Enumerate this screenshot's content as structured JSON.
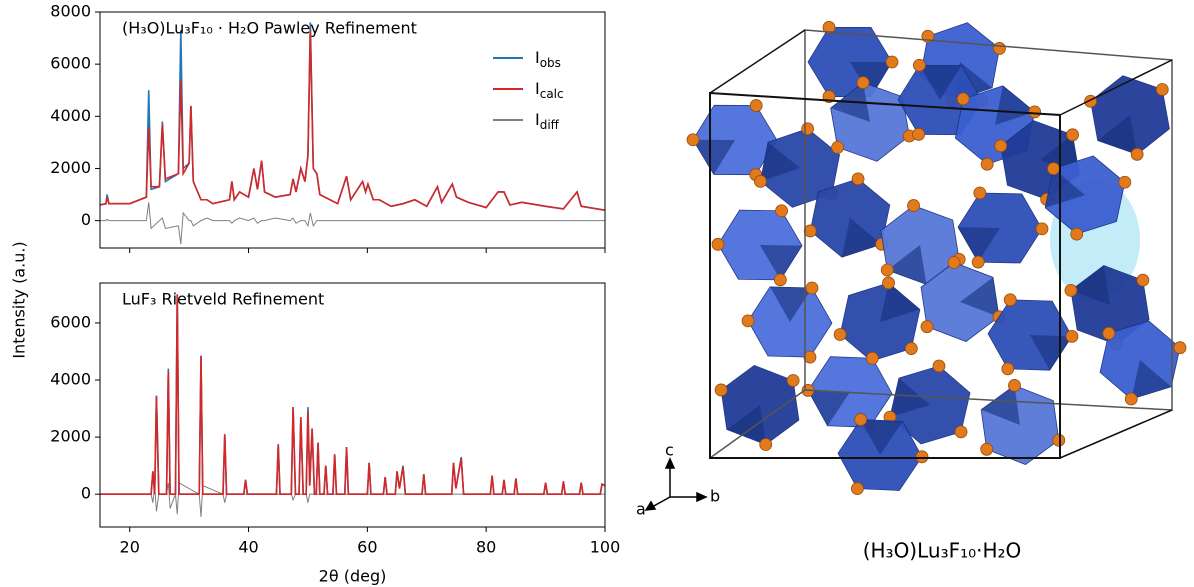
{
  "chart_data": [
    {
      "type": "line",
      "title": "(H₃O)Lu₃F₁₀ · H₂O Pawley Refinement",
      "ylabel": "Intensity (a.u.)",
      "x": [
        15,
        16,
        16.2,
        16.5,
        20,
        22.8,
        23.2,
        23.6,
        25,
        25.5,
        26,
        28.2,
        28.6,
        29,
        30,
        30.3,
        30.7,
        32,
        33,
        34,
        36.8,
        37.2,
        37.6,
        38.5,
        40,
        40.9,
        41.5,
        42.2,
        42.7,
        44.5,
        47,
        47.5,
        48,
        48.8,
        49.5,
        50,
        50.4,
        50.9,
        51.5,
        52,
        55,
        56.5,
        57.2,
        59.2,
        59.7,
        60.1,
        61,
        62,
        64,
        66,
        68,
        70,
        71.8,
        72.5,
        74.3,
        75,
        77,
        80,
        82,
        83,
        84,
        86,
        90,
        93,
        95.3,
        96,
        100
      ],
      "xlim": [
        15,
        100
      ],
      "xticks": [
        20,
        40,
        60,
        80,
        100
      ],
      "show_xtick_labels": false,
      "ylim": [
        -1050,
        8000
      ],
      "yticks": [
        0,
        2000,
        4000,
        6000,
        8000
      ],
      "legend": "upper right",
      "series": [
        {
          "name": "Iobs",
          "color": "#1f77b4",
          "values": [
            600,
            650,
            1000,
            650,
            650,
            900,
            5000,
            1200,
            1300,
            3800,
            1500,
            1800,
            7300,
            2000,
            2200,
            4400,
            1500,
            800,
            800,
            650,
            800,
            1500,
            800,
            1100,
            900,
            2000,
            1200,
            2300,
            1100,
            900,
            1000,
            1600,
            1100,
            2000,
            1500,
            2500,
            7600,
            2000,
            1800,
            1000,
            650,
            1700,
            800,
            1500,
            1100,
            1400,
            800,
            800,
            550,
            650,
            800,
            550,
            1300,
            700,
            1400,
            900,
            700,
            500,
            1100,
            1100,
            600,
            700,
            550,
            450,
            1100,
            550,
            400
          ]
        },
        {
          "name": "Icalc",
          "color": "#d62728",
          "values": [
            600,
            650,
            900,
            650,
            650,
            900,
            3600,
            1300,
            1300,
            3700,
            1600,
            1800,
            5400,
            1800,
            2200,
            4400,
            1500,
            800,
            800,
            650,
            800,
            1500,
            800,
            1100,
            900,
            2000,
            1200,
            2300,
            1100,
            900,
            1000,
            1600,
            1100,
            2000,
            1500,
            2500,
            7300,
            2000,
            1800,
            1000,
            650,
            1700,
            800,
            1500,
            1100,
            1400,
            800,
            800,
            550,
            650,
            800,
            550,
            1300,
            700,
            1400,
            900,
            700,
            500,
            1100,
            1100,
            600,
            700,
            550,
            450,
            1100,
            550,
            400
          ]
        },
        {
          "name": "Idiff",
          "color": "#808080",
          "values": [
            0,
            0,
            50,
            0,
            0,
            0,
            700,
            -300,
            0,
            100,
            -300,
            -200,
            -900,
            300,
            0,
            0,
            -200,
            0,
            100,
            0,
            0,
            -100,
            0,
            100,
            0,
            100,
            -100,
            0,
            0,
            100,
            0,
            100,
            -100,
            0,
            0,
            -200,
            300,
            -200,
            0,
            0,
            0,
            0,
            0,
            0,
            0,
            0,
            0,
            0,
            0,
            0,
            0,
            0,
            0,
            0,
            0,
            0,
            0,
            0,
            0,
            0,
            0,
            0,
            0,
            0,
            0,
            0,
            0
          ]
        }
      ]
    },
    {
      "type": "line",
      "title": "LuF₃ Rietveld Refinement",
      "xlabel": "2θ (deg)",
      "x": [
        15,
        23.6,
        23.9,
        24.2,
        24.5,
        24.9,
        26.2,
        26.5,
        26.8,
        27.7,
        28,
        28.3,
        31.7,
        32,
        32.3,
        35.7,
        36,
        36.3,
        39.2,
        39.5,
        39.8,
        44.7,
        45,
        45.3,
        47.2,
        47.5,
        47.9,
        48.5,
        48.8,
        49.2,
        49.7,
        50,
        50.3,
        50.7,
        51.1,
        51.4,
        51.7,
        52,
        52.7,
        53,
        53.3,
        54.2,
        54.5,
        54.8,
        56.2,
        56.5,
        56.8,
        60,
        60.3,
        60.6,
        62.7,
        63,
        63.3,
        64.7,
        65,
        65.4,
        66,
        66.4,
        69.2,
        69.5,
        69.8,
        74.2,
        74.5,
        74.9,
        75.8,
        76.2,
        80.7,
        81,
        81.3,
        82.7,
        83,
        83.3,
        84.7,
        85,
        85.3,
        89.7,
        90,
        90.3,
        92.7,
        93,
        93.3,
        95.7,
        96,
        96.3,
        99.2,
        99.5,
        100
      ],
      "xlim": [
        15,
        100
      ],
      "xticks": [
        20,
        40,
        60,
        80,
        100
      ],
      "show_xtick_labels": true,
      "ylim": [
        -1150,
        7400
      ],
      "yticks": [
        0,
        2000,
        4000,
        6000
      ],
      "series": [
        {
          "color": "#1f77b4",
          "values": [
            0,
            0,
            800,
            0,
            3450,
            0,
            0,
            4400,
            0,
            0,
            7000,
            0,
            0,
            4850,
            0,
            0,
            2100,
            0,
            0,
            500,
            0,
            0,
            1750,
            0,
            0,
            3050,
            0,
            0,
            2700,
            0,
            0,
            3050,
            300,
            2300,
            0,
            0,
            1800,
            0,
            0,
            1000,
            0,
            0,
            1400,
            0,
            0,
            1650,
            0,
            0,
            1100,
            0,
            0,
            600,
            0,
            0,
            800,
            200,
            1000,
            0,
            0,
            700,
            0,
            0,
            1100,
            200,
            1300,
            0,
            0,
            650,
            0,
            0,
            500,
            0,
            0,
            550,
            0,
            0,
            400,
            0,
            0,
            450,
            0,
            0,
            400,
            0,
            0,
            350,
            300
          ]
        },
        {
          "color": "#d62728",
          "values": [
            0,
            0,
            800,
            0,
            3450,
            0,
            0,
            4300,
            0,
            0,
            7000,
            0,
            0,
            4850,
            0,
            0,
            2100,
            0,
            0,
            500,
            0,
            0,
            1750,
            0,
            0,
            3050,
            0,
            0,
            2700,
            0,
            0,
            2900,
            300,
            2300,
            0,
            0,
            1800,
            0,
            0,
            1000,
            0,
            0,
            1400,
            0,
            0,
            1650,
            0,
            0,
            1100,
            0,
            0,
            600,
            0,
            0,
            800,
            200,
            950,
            0,
            0,
            700,
            0,
            0,
            1100,
            200,
            1250,
            0,
            0,
            650,
            0,
            0,
            500,
            0,
            0,
            550,
            0,
            0,
            400,
            0,
            0,
            450,
            0,
            0,
            400,
            0,
            0,
            350,
            300
          ]
        },
        {
          "color": "#808080",
          "values": [
            0,
            0,
            -300,
            300,
            -600,
            0,
            0,
            400,
            -500,
            0,
            -700,
            400,
            0,
            -800,
            300,
            0,
            -300,
            0,
            0,
            0,
            0,
            0,
            0,
            0,
            0,
            -200,
            0,
            0,
            0,
            0,
            0,
            -300,
            0,
            0,
            0,
            0,
            0,
            0,
            0,
            0,
            0,
            0,
            0,
            0,
            0,
            0,
            0,
            0,
            0,
            0,
            0,
            0,
            0,
            0,
            0,
            0,
            0,
            0,
            0,
            0,
            0,
            0,
            0,
            0,
            0,
            0,
            0,
            0,
            0,
            0,
            0,
            0,
            0,
            0,
            0,
            0,
            0,
            0,
            0,
            0,
            0,
            0,
            0,
            0,
            0,
            0,
            0
          ]
        }
      ]
    }
  ],
  "structure": {
    "caption": "(H₃O)Lu₃F₁₀·H₂O",
    "axis_labels": [
      "a",
      "b",
      "c"
    ]
  }
}
